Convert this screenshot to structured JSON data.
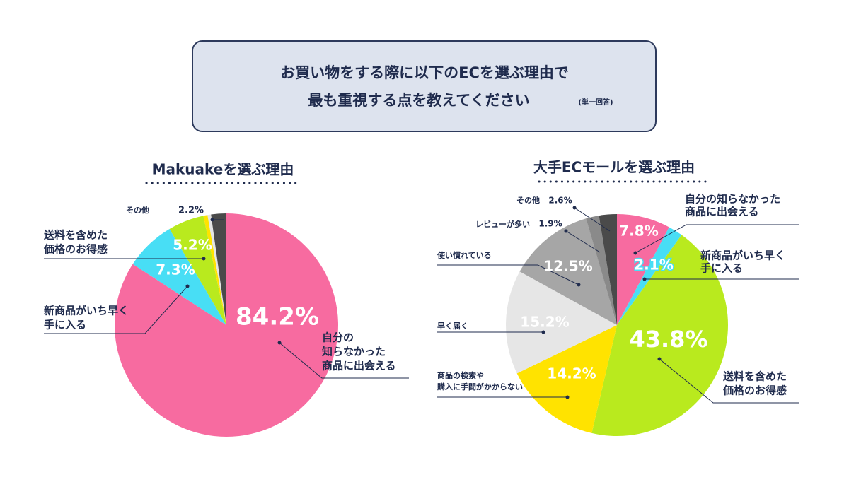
{
  "header": {
    "title_lines": [
      "お買い物をする際に以下のECを選ぶ理由で",
      "最も重視する点を教えてください"
    ],
    "note": "(単一回答)"
  },
  "chart_data": [
    {
      "type": "pie",
      "title": "Makuakeを選ぶ理由",
      "categories": [
        [
          "自分の",
          "知らなかった",
          "商品に出会える"
        ],
        [
          "新商品がいち早く",
          "手に入る"
        ],
        [
          "送料を含めた",
          "価格のお得感"
        ],
        null,
        null,
        [
          "その他"
        ]
      ],
      "values": [
        84.2,
        7.3,
        5.2,
        0.6,
        0.5,
        2.2
      ],
      "value_labels": [
        "84.2%",
        "7.3%",
        "5.2%",
        null,
        null,
        "2.2%"
      ],
      "colors": [
        "#f76ba0",
        "#48def5",
        "#b9ea1e",
        "#ffe300",
        "#e4e4e4",
        "#4a4a4a"
      ]
    },
    {
      "type": "pie",
      "title": "大手ECモールを選ぶ理由",
      "categories": [
        [
          "自分の知らなかった",
          "商品に出会える"
        ],
        [
          "新商品がいち早く",
          "手に入る"
        ],
        [
          "送料を含めた",
          "価格のお得感"
        ],
        [
          "商品の検索や",
          "購入に手間がかからない"
        ],
        [
          "早く届く"
        ],
        [
          "使い慣れている"
        ],
        [
          "レビューが多い"
        ],
        [
          "その他"
        ]
      ],
      "values": [
        7.8,
        2.1,
        43.8,
        14.2,
        15.2,
        12.5,
        1.9,
        2.6
      ],
      "value_labels": [
        "7.8%",
        "2.1%",
        "43.8%",
        "14.2%",
        "15.2%",
        "12.5%",
        "1.9%",
        "2.6%"
      ],
      "colors": [
        "#f76ba0",
        "#48def5",
        "#b9ea1e",
        "#ffe300",
        "#e6e6e6",
        "#a6a6a6",
        "#8a8a8a",
        "#4a4a4a"
      ]
    }
  ]
}
